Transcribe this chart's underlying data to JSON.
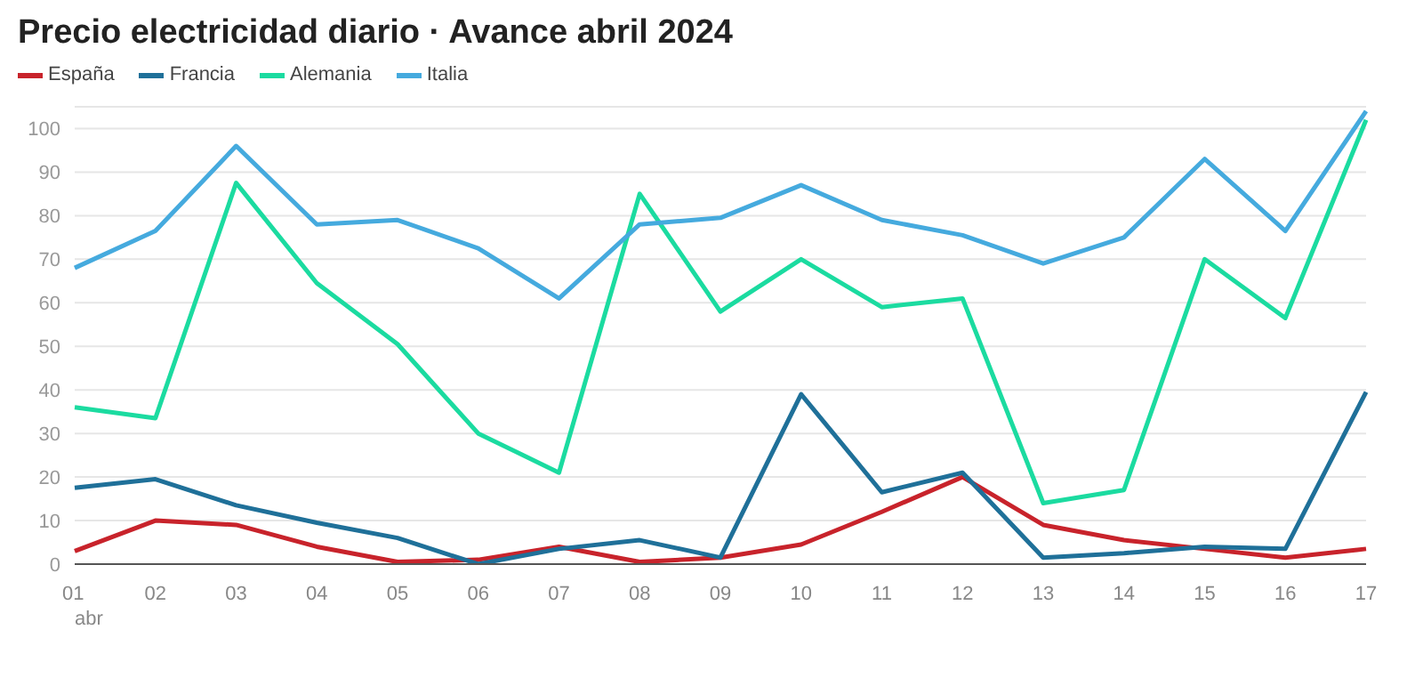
{
  "chart_data": {
    "type": "line",
    "title": "Precio electricidad diario · Avance abril 2024",
    "categories": [
      "01\nabr",
      "02",
      "03",
      "04",
      "05",
      "06",
      "07",
      "08",
      "09",
      "10",
      "11",
      "12",
      "13",
      "14",
      "15",
      "16",
      "17"
    ],
    "series": [
      {
        "name": "España",
        "color": "#c8232b",
        "values": [
          3,
          10,
          9,
          4,
          0.5,
          1,
          4,
          0.5,
          1.5,
          4.5,
          12,
          20,
          9,
          5.5,
          3.5,
          1.5,
          3.5
        ]
      },
      {
        "name": "Francia",
        "color": "#1f7099",
        "values": [
          17.5,
          19.5,
          13.5,
          9.5,
          6,
          0,
          3.5,
          5.5,
          1.5,
          39,
          16.5,
          21,
          1.5,
          2.5,
          4,
          3.5,
          39.5
        ]
      },
      {
        "name": "Alemania",
        "color": "#1bdba0",
        "values": [
          36,
          33.5,
          87.5,
          64.5,
          50.5,
          30,
          21,
          85,
          58,
          70,
          59,
          61,
          14,
          17,
          70,
          56.5,
          102
        ]
      },
      {
        "name": "Italia",
        "color": "#45aade",
        "values": [
          68,
          76.5,
          96,
          78,
          79,
          72.5,
          61,
          78,
          79.5,
          87,
          79,
          75.5,
          69,
          75,
          93,
          76.5,
          104
        ]
      }
    ],
    "ylim": [
      0,
      105
    ],
    "yticks": [
      0,
      10,
      20,
      30,
      40,
      50,
      60,
      70,
      80,
      90,
      100
    ],
    "grid": "y",
    "legend": "top left",
    "marker": "none",
    "line_style": "solid"
  }
}
